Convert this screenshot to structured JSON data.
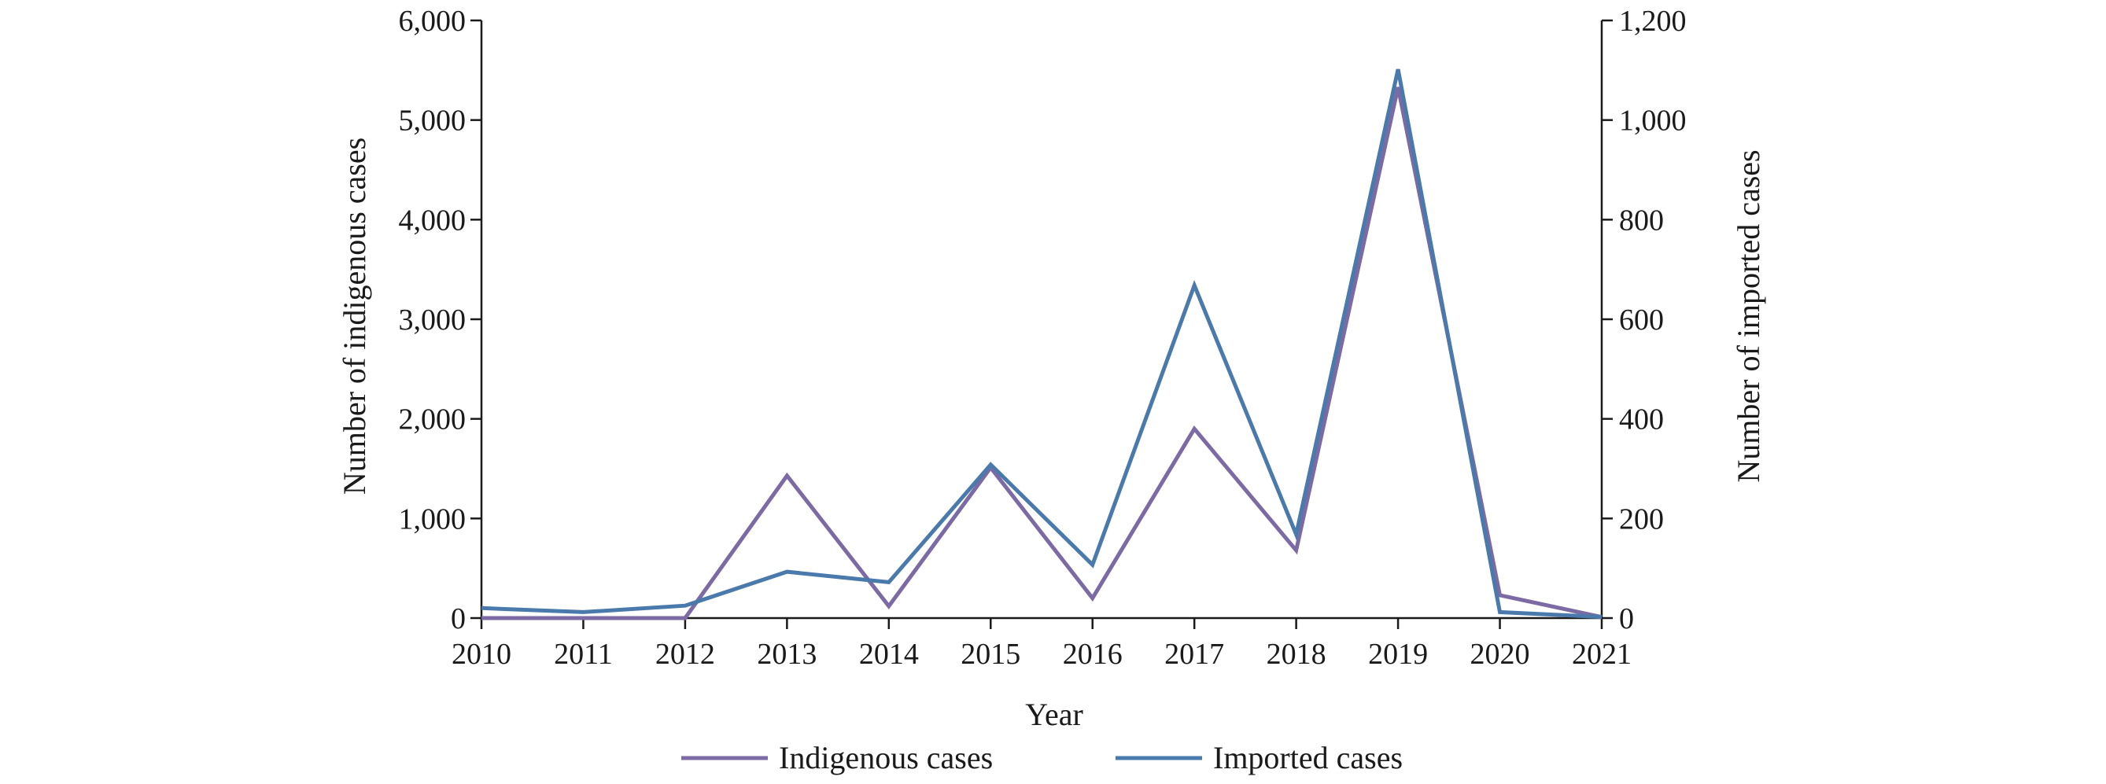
{
  "chart_data": {
    "type": "line",
    "title": "",
    "xlabel": "Year",
    "ylabel_left": "Number of indigenous cases",
    "ylabel_right": "Number of imported cases",
    "categories": [
      "2010",
      "2011",
      "2012",
      "2013",
      "2014",
      "2015",
      "2016",
      "2017",
      "2018",
      "2019",
      "2020",
      "2021"
    ],
    "y_left": {
      "min": 0,
      "max": 6000,
      "ticks": [
        0,
        1000,
        2000,
        3000,
        4000,
        5000,
        6000
      ],
      "tick_labels": [
        "0",
        "1,000",
        "2,000",
        "3,000",
        "4,000",
        "5,000",
        "6,000"
      ]
    },
    "y_right": {
      "min": 0,
      "max": 1200,
      "ticks": [
        0,
        200,
        400,
        600,
        800,
        1000,
        1200
      ],
      "tick_labels": [
        "0",
        "200",
        "400",
        "600",
        "800",
        "1,000",
        "1,200"
      ]
    },
    "series": [
      {
        "name": "Indigenous cases",
        "axis": "left",
        "color": "#7b6aa3",
        "values": [
          0,
          0,
          0,
          1430,
          120,
          1510,
          200,
          1900,
          680,
          5330,
          230,
          10
        ]
      },
      {
        "name": "Imported cases",
        "axis": "right",
        "color": "#4a7aab",
        "values": [
          20,
          12,
          25,
          93,
          72,
          308,
          107,
          668,
          168,
          1102,
          12,
          2
        ]
      }
    ],
    "legend_position": "bottom-center",
    "grid": false
  }
}
